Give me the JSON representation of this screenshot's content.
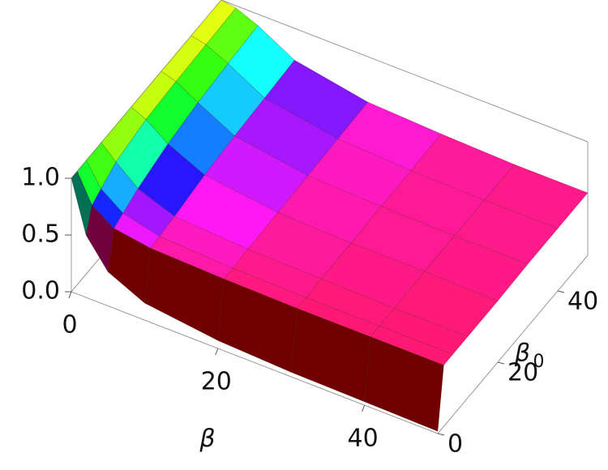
{
  "chart_data": {
    "type": "surface3d",
    "x_label": "β",
    "y_label": "β",
    "y_label_sub": "0",
    "x": [
      0,
      2,
      5,
      10,
      20,
      30,
      40,
      50
    ],
    "y": [
      0,
      2,
      5,
      10,
      20,
      30,
      40,
      50
    ],
    "z": [
      [
        1,
        0.55,
        0.3,
        0.15,
        0.07,
        0.04,
        0.03,
        0.02
      ],
      [
        1,
        0.75,
        0.62,
        0.57,
        0.55,
        0.54,
        0.54,
        0.54
      ],
      [
        1,
        0.8,
        0.66,
        0.58,
        0.55,
        0.54,
        0.54,
        0.54
      ],
      [
        1,
        0.88,
        0.72,
        0.6,
        0.56,
        0.55,
        0.54,
        0.54
      ],
      [
        1,
        0.94,
        0.8,
        0.65,
        0.57,
        0.55,
        0.55,
        0.54
      ],
      [
        1,
        0.96,
        0.85,
        0.68,
        0.58,
        0.56,
        0.55,
        0.55
      ],
      [
        1,
        0.97,
        0.88,
        0.7,
        0.59,
        0.56,
        0.55,
        0.55
      ],
      [
        1,
        0.98,
        0.9,
        0.72,
        0.6,
        0.57,
        0.55,
        0.55
      ]
    ],
    "xlim": [
      0,
      50
    ],
    "ylim": [
      0,
      50
    ],
    "zlim": [
      0,
      1
    ],
    "xticks": [
      0,
      20,
      40
    ],
    "yticks": [
      0,
      20,
      40
    ],
    "zticks": [
      {
        "value": 0,
        "label": "0.0"
      },
      0.5,
      {
        "value": 1,
        "label": "1.0"
      }
    ]
  }
}
